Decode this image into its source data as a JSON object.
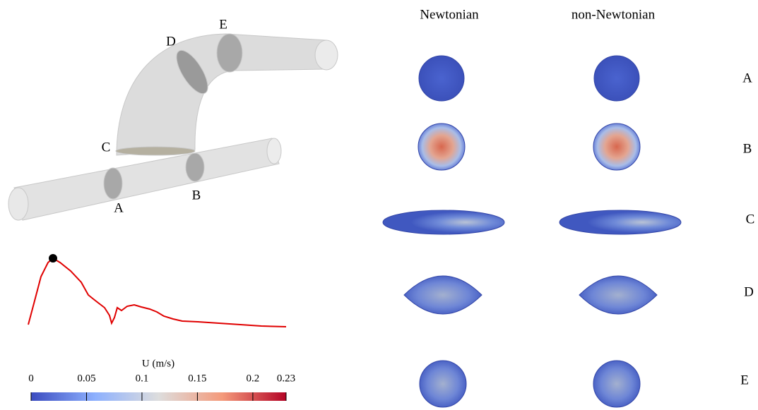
{
  "geometry": {
    "labels": [
      "A",
      "B",
      "C",
      "D",
      "E"
    ]
  },
  "columns": [
    "Newtonian",
    "non-Newtonian"
  ],
  "rows": [
    "A",
    "B",
    "C",
    "D",
    "E"
  ],
  "colorbar": {
    "title": "U (m/s)",
    "lim": [
      0,
      0.23
    ],
    "ticks": [
      0,
      0.05,
      0.1,
      0.15,
      0.2,
      0.23
    ]
  }
}
